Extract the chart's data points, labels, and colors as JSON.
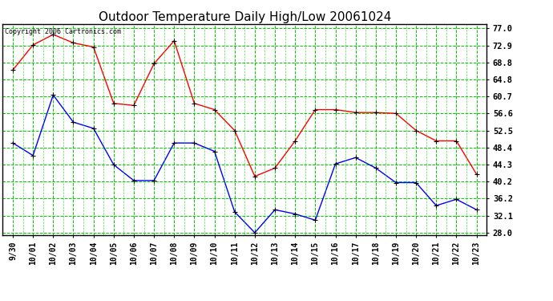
{
  "title": "Outdoor Temperature Daily High/Low 20061024",
  "copyright": "Copyright 2006 Cartronics.com",
  "x_labels": [
    "9/30",
    "10/01",
    "10/02",
    "10/03",
    "10/04",
    "10/05",
    "10/06",
    "10/07",
    "10/08",
    "10/09",
    "10/10",
    "10/11",
    "10/12",
    "10/13",
    "10/14",
    "10/15",
    "10/16",
    "10/17",
    "10/18",
    "10/19",
    "10/20",
    "10/21",
    "10/22",
    "10/23"
  ],
  "high_values": [
    67.0,
    73.0,
    75.5,
    73.5,
    72.5,
    59.0,
    58.5,
    68.5,
    74.0,
    59.0,
    57.5,
    52.5,
    41.5,
    43.5,
    50.0,
    57.5,
    57.5,
    56.8,
    56.8,
    56.6,
    52.5,
    50.0,
    50.0,
    42.0
  ],
  "low_values": [
    49.5,
    46.5,
    61.0,
    54.5,
    53.0,
    44.3,
    40.5,
    40.5,
    49.5,
    49.5,
    47.5,
    33.0,
    28.0,
    33.5,
    32.5,
    31.0,
    44.5,
    46.0,
    43.5,
    40.0,
    40.0,
    34.5,
    36.0,
    33.5
  ],
  "high_color": "#ff0000",
  "low_color": "#0000ff",
  "bg_color": "#ffffff",
  "grid_color": "#00cc00",
  "title_fontsize": 11,
  "yticks": [
    28.0,
    32.1,
    36.2,
    40.2,
    44.3,
    48.4,
    52.5,
    56.6,
    60.7,
    64.8,
    68.8,
    72.9,
    77.0
  ],
  "ylim": [
    27.5,
    78.0
  ]
}
